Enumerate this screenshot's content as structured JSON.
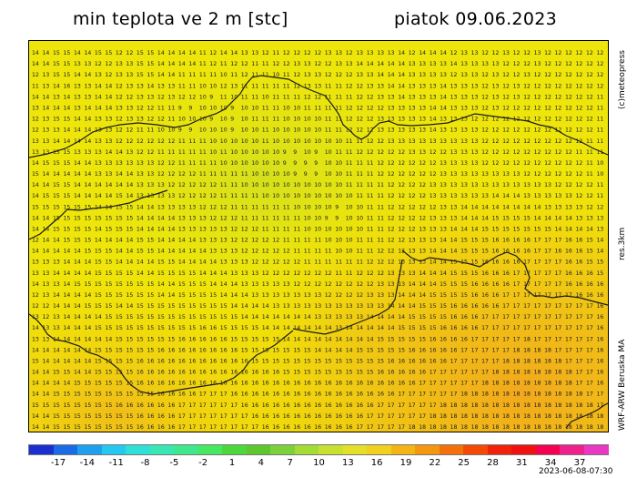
{
  "title": "min teplota ve 2 m [stc]",
  "date": "piatok 09.06.2023",
  "side_labels": {
    "copyright": "(c)meteopress",
    "resolution": "res.3km",
    "model": "WRF-ARW Beruska MA"
  },
  "timestamp": "2023-06-08-07:30",
  "colorbar": {
    "tick_labels": [
      "-17",
      "-14",
      "-11",
      "-8",
      "-5",
      "-2",
      "1",
      "4",
      "7",
      "10",
      "13",
      "16",
      "19",
      "22",
      "25",
      "28",
      "31",
      "34",
      "37"
    ],
    "colors": [
      "#1b2fd1",
      "#1a6be6",
      "#1f9ff0",
      "#25c8ee",
      "#2fe0d8",
      "#38e8b4",
      "#3fe88c",
      "#46e860",
      "#4cd83c",
      "#5cc82e",
      "#7cd23a",
      "#a4dc36",
      "#c8e030",
      "#e4e02a",
      "#f0d21e",
      "#f4b414",
      "#f4960e",
      "#f47008",
      "#f44a06",
      "#f02208",
      "#f01010",
      "#f40050",
      "#f0208c",
      "#e838c4"
    ]
  },
  "grid_values": [
    "14 14 15 15 14 14 15 15 12 12 15 15 14 14 14 14 11 12 14 14 13 13 12 11 12 12 12 12 13 13 12 13 13 13 13 14 12 14 14 14 12 13 13 12 12 13 12 12 13 12 12 12 12 12 12",
    "14 14 15 15 13 13 12 12 13 13 15 15 14 14 14 14 11 12 11 12 12 11 11 12 12 13 13 12 12 13 13 14 14 14 14 14 13 13 13 13 14 13 13 13 13 12 12 12 13 12 12 12 12 12 12",
    "12 13 15 15 14 14 13 12 13 13 15 15 14 14 11 11 11 11 10 11 12 11 11 10 11 12 13 13 12 12 12 13 13 14 14 14 13 13 13 13 12 13 13 12 13 12 12 13 12 12 12 12 12 12 12",
    "11 13 14 16 13 13 14 14 12 13 13 14 13 13 11 11 10 10 12 13 11 11 11 11 11 12 13 13 11 11 12 12 13 13 14 14 13 13 13 14 13 13 13 12 13 12 13 12 12 12 12 12 12 12 12",
    "14 14 13 14 13 13 14 14 12 12 13 13 12 13 12 12 10 9 11 10 11 11 10 11 11 11 12 12 11 11 11 12 12 13 13 14 13 13 13 14 13 13 13 12 13 12 13 12 12 12 12 12 12 12 11",
    "13 14 14 14 13 14 14 14 13 13 12 12 11 11 9 9 10 10 10 9 10 10 11 11 10 10 11 11 11 11 12 12 12 12 13 13 13 13 14 14 13 13 13 12 13 12 12 12 12 12 12 12 12 12 11",
    "12 13 15 15 14 14 13 13 12 13 13 12 12 11 10 10 10 9 10 9 10 11 11 11 10 10 10 10 11 11 12 12 12 13 13 13 13 13 14 13 13 13 12 12 12 12 12 12 12 12 12 12 12 12 11",
    "12 13 13 14 14 14 13 13 12 12 11 11 10 10 9 9 10 10 10 9 10 10 11 10 10 10 10 10 11 11 12 12 12 13 13 13 13 13 14 13 13 13 13 12 12 12 12 12 12 12 12 12 12 12 11",
    "13 13 14 14 14 14 13 13 12 12 12 12 12 12 11 11 11 10 10 10 10 10 11 10 10 10 10 10 10 10 11 11 12 12 13 13 13 13 13 13 13 13 13 12 12 12 12 12 12 12 12 12 12 11 11",
    "13 13 15 15 13 13 13 14 14 13 12 12 11 11 11 11 11 10 11 10 10 10 10 10 9 9 10 9 10 11 11 12 12 12 12 12 13 13 12 12 13 13 13 12 12 12 12 12 12 12 12 12 11 11 11",
    "14 15 15 15 14 14 13 13 13 13 13 13 12 12 11 11 11 11 10 10 10 10 10 10 9 9 9 9 10 10 11 11 11 12 12 12 12 12 12 13 13 13 13 12 12 12 12 12 12 12 12 12 12 11 10",
    "15 14 14 14 14 14 13 13 14 14 13 13 12 12 12 12 11 11 11 11 11 10 10 10 10 9 9 9 10 10 11 11 11 12 12 12 12 12 12 13 13 13 13 13 13 13 13 12 12 12 12 12 12 11 10",
    "14 14 15 15 14 14 14 14 14 14 13 13 13 12 12 12 12 12 11 11 10 10 10 10 10 10 10 10 10 10 11 11 11 11 12 12 12 12 13 13 13 13 13 13 13 13 13 13 13 13 12 12 12 12 11",
    "14 15 15 15 14 14 14 14 15 14 13 13 13 13 12 12 12 12 11 11 11 11 10 10 10 10 10 10 10 10 10 11 11 11 12 12 12 12 13 13 13 13 13 13 14 14 14 13 13 13 13 13 12 12 11",
    "15 15 15 15 15 15 14 14 15 15 14 14 13 13 13 13 12 12 12 11 11 11 11 11 11 10 10 10 10 9 10 10 11 11 12 12 12 12 12 13 13 14 14 14 14 14 14 14 14 13 13 13 13 12 12",
    "14 14 15 15 15 15 15 15 15 15 14 14 14 14 13 13 13 12 12 12 11 11 11 11 11 11 10 10 9 9 10 10 11 11 12 12 12 12 13 13 13 14 14 14 15 15 15 15 14 14 14 14 13 13 13",
    "14 14 15 15 15 15 14 15 15 15 14 14 14 14 13 13 13 13 13 12 12 12 11 11 11 11 10 10 10 10 10 10 11 11 12 12 12 13 13 13 14 14 14 15 15 15 15 15 15 15 14 14 14 14 13",
    "12 14 14 15 15 15 14 14 14 14 15 15 14 14 14 14 13 13 13 12 12 12 12 12 11 11 11 11 10 10 10 11 11 11 12 12 13 13 13 14 14 15 15 15 16 16 16 16 17 17 17 16 16 15 14",
    "14 14 14 14 14 15 15 15 14 14 15 15 14 14 14 14 14 13 13 13 12 12 12 12 12 11 11 11 11 10 10 11 11 12 12 12 13 13 14 14 14 15 15 15 16 16 16 16 17 17 16 16 16 15 14",
    "13 13 13 14 14 14 15 15 14 14 14 14 15 15 14 14 14 14 13 13 13 12 12 12 12 12 11 11 11 11 11 11 12 12 12 13 13 13 14 14 15 15 15 16 16 16 16 17 17 17 17 16 16 15 15",
    "13 13 14 14 14 14 15 15 15 15 14 14 15 15 15 15 14 14 14 13 13 13 12 12 12 12 12 12 12 11 11 12 12 12 13 13 13 14 14 14 15 15 15 16 16 16 17 17 17 17 17 16 16 16 15",
    "14 13 13 14 15 15 15 15 15 15 15 15 14 14 15 15 15 14 14 14 13 13 13 13 13 12 12 12 12 12 12 12 12 13 13 13 14 14 14 15 15 15 16 16 16 16 17 17 17 17 17 16 16 16 16",
    "12 13 14 14 14 14 15 15 15 15 15 15 14 14 15 15 15 15 14 14 14 13 13 13 13 13 13 13 12 12 12 12 13 13 13 14 14 14 15 15 15 15 16 16 16 17 17 17 17 17 17 17 16 16 16",
    "12 12 14 14 14 15 15 15 14 14 15 15 15 15 15 15 15 15 15 14 14 14 14 13 13 13 13 13 13 13 13 13 13 13 14 14 14 15 15 15 16 16 16 16 16 17 17 17 17 17 17 17 17 17 16",
    "13 12 13 14 14 14 14 15 15 15 15 15 15 15 15 15 15 15 15 15 14 14 14 14 14 14 14 13 13 13 13 13 14 14 14 14 15 15 15 15 16 16 16 17 17 17 17 17 17 17 17 17 17 17 16",
    "14 13 13 14 14 14 15 15 15 15 15 15 15 15 15 15 16 16 15 15 15 15 14 14 14 14 14 14 14 13 14 14 14 14 14 15 15 15 15 16 16 16 16 17 17 17 17 17 17 17 17 17 17 17 16",
    "13 13 14 14 14 14 14 14 15 15 15 15 15 15 16 16 16 16 16 15 15 15 15 15 14 14 14 14 14 14 14 14 14 15 15 15 15 15 16 16 16 16 17 17 17 17 17 18 17 17 17 17 17 17 16",
    "14 14 14 14 14 14 15 15 15 15 15 15 16 16 16 16 16 16 16 16 15 15 15 15 15 15 15 14 14 14 14 15 15 15 15 15 16 16 16 16 16 17 17 17 17 17 18 18 18 18 17 17 17 17 16",
    "15 14 14 14 14 14 15 15 15 15 16 16 16 16 16 16 16 16 16 16 16 15 15 15 15 15 15 15 15 15 15 15 15 15 16 16 16 16 16 16 17 17 17 17 17 18 18 18 18 18 18 17 17 17 16",
    "14 14 15 15 14 14 15 15 15 15 16 16 16 16 16 16 16 16 16 16 16 16 16 16 15 15 15 15 15 15 15 15 15 16 16 16 16 16 17 17 17 17 17 17 18 18 18 18 18 18 18 18 17 17 16",
    "14 14 14 14 15 15 15 15 15 15 16 16 16 16 16 16 16 16 16 16 16 16 16 16 16 16 16 16 16 16 16 16 16 16 16 16 16 17 17 17 17 17 17 18 18 18 18 18 18 18 18 18 17 17 16",
    "14 14 15 15 15 15 15 15 15 15 15 15 16 16 16 16 17 17 17 16 16 16 16 16 16 16 16 16 16 16 16 16 16 16 16 17 17 17 17 17 17 18 18 18 18 18 18 18 18 18 18 18 18 17 17",
    "15 15 15 15 15 15 15 15 16 16 16 16 16 16 17 17 17 17 17 17 16 16 16 16 16 16 16 16 16 16 16 16 16 17 17 17 17 17 17 18 18 18 18 18 18 18 18 18 18 18 18 18 18 18 17",
    "14 14 15 15 15 15 15 15 15 15 16 16 16 16 17 17 17 17 17 17 17 16 16 16 16 16 16 16 16 16 16 16 17 17 17 17 17 17 18 18 18 18 18 18 18 18 18 18 18 18 18 18 18 18 18",
    "14 14 15 15 15 15 15 15 15 15 16 16 16 16 17 17 17 17 17 17 17 17 16 16 16 16 16 16 16 16 16 17 17 17 17 17 18 18 18 18 18 18 18 18 18 18 18 18 18 18 18 18 18 18 18"
  ]
}
